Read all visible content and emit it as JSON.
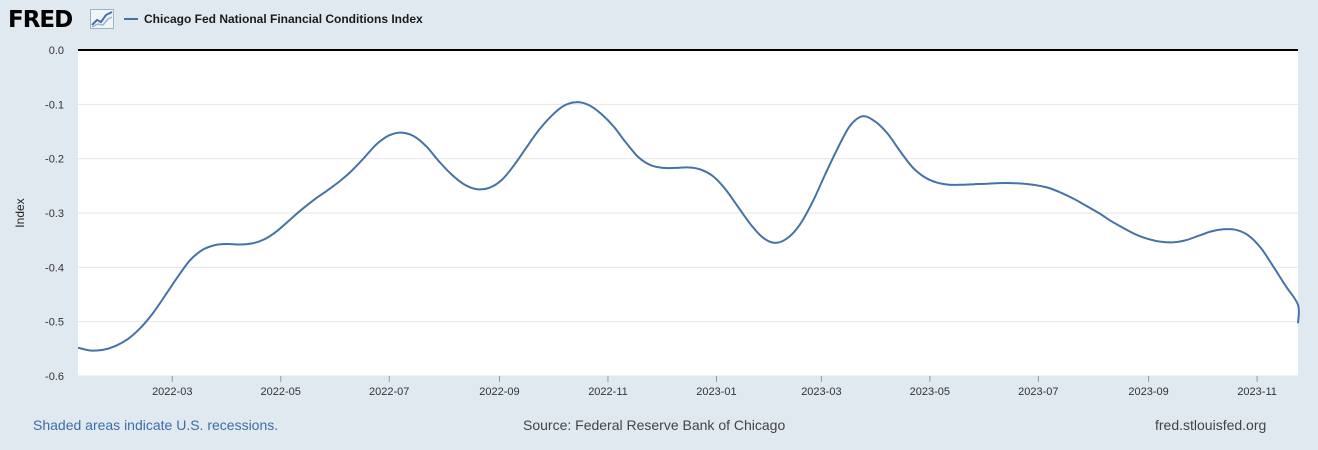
{
  "header": {
    "logo_text": "FRED",
    "logo_icon": "line-chart-icon",
    "legend_label": "Chicago Fed National Financial Conditions Index"
  },
  "footer": {
    "recessions_note": "Shaded areas indicate U.S. recessions.",
    "source": "Source: Federal Reserve Bank of Chicago",
    "site": "fred.stlouisfed.org"
  },
  "colors": {
    "series": "#4572a7",
    "background": "#e1e9f0",
    "plot": "#ffffff",
    "grid": "#e6e6e6",
    "zero_line": "#000000",
    "link": "#3c6ea5"
  },
  "chart_data": {
    "type": "line",
    "title": "",
    "xlabel": "",
    "ylabel": "Index",
    "ylim": [
      -0.6,
      0.0
    ],
    "xlim": [
      "2022-01-07",
      "2023-11-24"
    ],
    "yticks": [
      0.0,
      -0.1,
      -0.2,
      -0.3,
      -0.4,
      -0.5,
      -0.6
    ],
    "ytick_labels": [
      "0.0",
      "-0.1",
      "-0.2",
      "-0.3",
      "-0.4",
      "-0.5",
      "-0.6"
    ],
    "xticks": [
      "2022-03-01",
      "2022-05-01",
      "2022-07-01",
      "2022-09-01",
      "2022-11-01",
      "2023-01-01",
      "2023-03-01",
      "2023-05-01",
      "2023-07-01",
      "2023-09-01",
      "2023-11-01"
    ],
    "xtick_labels": [
      "2022-03",
      "2022-05",
      "2022-07",
      "2022-09",
      "2022-11",
      "2023-01",
      "2023-03",
      "2023-05",
      "2023-07",
      "2023-09",
      "2023-11"
    ],
    "grid": true,
    "legend_position": "top-left",
    "series": [
      {
        "name": "Chicago Fed National Financial Conditions Index",
        "color": "#4572a7",
        "points": [
          [
            "2022-01-07",
            -0.548
          ],
          [
            "2022-01-14",
            -0.553
          ],
          [
            "2022-01-21",
            -0.552
          ],
          [
            "2022-01-28",
            -0.545
          ],
          [
            "2022-02-04",
            -0.532
          ],
          [
            "2022-02-11",
            -0.512
          ],
          [
            "2022-02-18",
            -0.485
          ],
          [
            "2022-02-25",
            -0.452
          ],
          [
            "2022-03-04",
            -0.418
          ],
          [
            "2022-03-11",
            -0.387
          ],
          [
            "2022-03-18",
            -0.368
          ],
          [
            "2022-03-25",
            -0.359
          ],
          [
            "2022-04-01",
            -0.357
          ],
          [
            "2022-04-08",
            -0.358
          ],
          [
            "2022-04-15",
            -0.356
          ],
          [
            "2022-04-22",
            -0.348
          ],
          [
            "2022-04-29",
            -0.333
          ],
          [
            "2022-05-06",
            -0.313
          ],
          [
            "2022-05-13",
            -0.293
          ],
          [
            "2022-05-20",
            -0.275
          ],
          [
            "2022-05-27",
            -0.259
          ],
          [
            "2022-06-03",
            -0.242
          ],
          [
            "2022-06-10",
            -0.222
          ],
          [
            "2022-06-17",
            -0.198
          ],
          [
            "2022-06-24",
            -0.173
          ],
          [
            "2022-07-01",
            -0.157
          ],
          [
            "2022-07-08",
            -0.152
          ],
          [
            "2022-07-15",
            -0.159
          ],
          [
            "2022-07-22",
            -0.178
          ],
          [
            "2022-07-29",
            -0.205
          ],
          [
            "2022-08-05",
            -0.229
          ],
          [
            "2022-08-12",
            -0.247
          ],
          [
            "2022-08-19",
            -0.256
          ],
          [
            "2022-08-26",
            -0.254
          ],
          [
            "2022-09-02",
            -0.24
          ],
          [
            "2022-09-09",
            -0.213
          ],
          [
            "2022-09-16",
            -0.18
          ],
          [
            "2022-09-23",
            -0.148
          ],
          [
            "2022-09-30",
            -0.122
          ],
          [
            "2022-10-07",
            -0.103
          ],
          [
            "2022-10-14",
            -0.096
          ],
          [
            "2022-10-21",
            -0.101
          ],
          [
            "2022-10-28",
            -0.117
          ],
          [
            "2022-11-04",
            -0.14
          ],
          [
            "2022-11-11",
            -0.17
          ],
          [
            "2022-11-18",
            -0.197
          ],
          [
            "2022-11-25",
            -0.212
          ],
          [
            "2022-12-02",
            -0.217
          ],
          [
            "2022-12-09",
            -0.217
          ],
          [
            "2022-12-16",
            -0.216
          ],
          [
            "2022-12-23",
            -0.22
          ],
          [
            "2022-12-30",
            -0.232
          ],
          [
            "2023-01-06",
            -0.256
          ],
          [
            "2023-01-13",
            -0.288
          ],
          [
            "2023-01-20",
            -0.32
          ],
          [
            "2023-01-27",
            -0.345
          ],
          [
            "2023-02-03",
            -0.355
          ],
          [
            "2023-02-10",
            -0.346
          ],
          [
            "2023-02-17",
            -0.321
          ],
          [
            "2023-02-24",
            -0.28
          ],
          [
            "2023-03-03",
            -0.23
          ],
          [
            "2023-03-10",
            -0.182
          ],
          [
            "2023-03-17",
            -0.14
          ],
          [
            "2023-03-24",
            -0.122
          ],
          [
            "2023-03-31",
            -0.131
          ],
          [
            "2023-04-07",
            -0.153
          ],
          [
            "2023-04-14",
            -0.185
          ],
          [
            "2023-04-21",
            -0.215
          ],
          [
            "2023-04-28",
            -0.234
          ],
          [
            "2023-05-05",
            -0.244
          ],
          [
            "2023-05-12",
            -0.248
          ],
          [
            "2023-05-19",
            -0.248
          ],
          [
            "2023-05-26",
            -0.247
          ],
          [
            "2023-06-02",
            -0.246
          ],
          [
            "2023-06-09",
            -0.245
          ],
          [
            "2023-06-16",
            -0.245
          ],
          [
            "2023-06-23",
            -0.246
          ],
          [
            "2023-06-30",
            -0.249
          ],
          [
            "2023-07-07",
            -0.254
          ],
          [
            "2023-07-14",
            -0.263
          ],
          [
            "2023-07-21",
            -0.274
          ],
          [
            "2023-07-28",
            -0.287
          ],
          [
            "2023-08-04",
            -0.3
          ],
          [
            "2023-08-11",
            -0.315
          ],
          [
            "2023-08-18",
            -0.328
          ],
          [
            "2023-08-25",
            -0.34
          ],
          [
            "2023-09-01",
            -0.348
          ],
          [
            "2023-09-08",
            -0.353
          ],
          [
            "2023-09-15",
            -0.354
          ],
          [
            "2023-09-22",
            -0.35
          ],
          [
            "2023-09-29",
            -0.342
          ],
          [
            "2023-10-06",
            -0.334
          ],
          [
            "2023-10-13",
            -0.33
          ],
          [
            "2023-10-20",
            -0.331
          ],
          [
            "2023-10-27",
            -0.341
          ],
          [
            "2023-11-03",
            -0.364
          ],
          [
            "2023-11-10",
            -0.398
          ],
          [
            "2023-11-17",
            -0.434
          ],
          [
            "2023-11-24",
            -0.469
          ],
          [
            "2023-12-01",
            -0.503
          ]
        ]
      }
    ]
  }
}
